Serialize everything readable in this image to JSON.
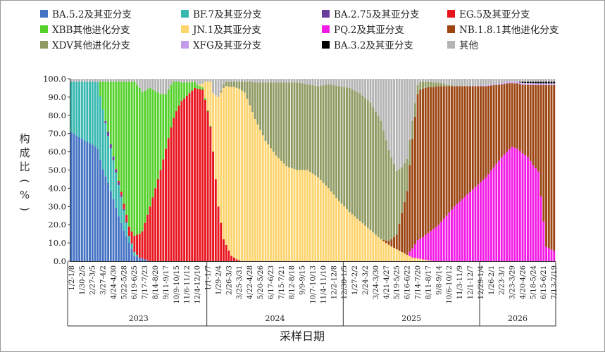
{
  "colors": {
    "BA52": "#4472c4",
    "BF7": "#36b8b0",
    "BA275": "#6a3d9a",
    "EG5": "#e8141e",
    "XBB": "#55d12b",
    "JN1": "#fdd46e",
    "PQ2": "#f21be6",
    "NB181": "#9c4511",
    "XDV": "#8f9b63",
    "XFG": "#c39bea",
    "BA32": "#000000",
    "other": "#b4b4b4"
  },
  "legend": [
    {
      "key": "BA52",
      "label": "BA.5.2及其亚分支"
    },
    {
      "key": "BF7",
      "label": "BF.7及其亚分支"
    },
    {
      "key": "BA275",
      "label": "BA.2.75及其亚分支"
    },
    {
      "key": "EG5",
      "label": "EG.5及其亚分支"
    },
    {
      "key": "XBB",
      "label": "XBB其他进化分支"
    },
    {
      "key": "JN1",
      "label": "JN.1及其亚分支"
    },
    {
      "key": "PQ2",
      "label": "PQ.2及其亚分支"
    },
    {
      "key": "NB181",
      "label": "NB.1.8.1其他进化分支"
    },
    {
      "key": "XDV",
      "label": "XDV其他进化分支"
    },
    {
      "key": "XFG",
      "label": "XFG及其亚分支"
    },
    {
      "key": "BA32",
      "label": "BA.3.2及其亚分支"
    },
    {
      "key": "other",
      "label": "其他"
    }
  ],
  "chart_data": {
    "type": "bar",
    "stacked": true,
    "xlabel": "采样日期",
    "ylabel": "构成比（%）",
    "ylim": [
      0,
      100
    ],
    "yticks": [
      "0.0",
      "10.0",
      "20.0",
      "30.0",
      "40.0",
      "50.0",
      "60.0",
      "70.0",
      "80.0",
      "90.0",
      "100.0"
    ],
    "grid": false,
    "legend_position": "top",
    "stack_order": [
      "BA52",
      "BF7",
      "BA275",
      "EG5",
      "XBB",
      "JN1",
      "PQ2",
      "NB181",
      "XDV",
      "XFG",
      "BA32",
      "other"
    ],
    "x_tick_labels": [
      "1/2-1/8",
      "1/30-2/5",
      "2/27-3/5",
      "3/27-4/2",
      "4/24-4/30",
      "5/22-5/28",
      "6/19-6/25",
      "7/17-7/23",
      "8/14-8/20",
      "9/11-9/17",
      "10/9-10/15",
      "11/6-11/12",
      "12/4-12/10",
      "1/1-1/7",
      "1/29-2/4",
      "2/26-3/3",
      "3/25-3/31",
      "4/22-4/28",
      "5/20-5/26",
      "6/17-6/23",
      "7/15-7/21",
      "8/12-8/18",
      "9/9-9/15",
      "10/7-10/13",
      "11/4-11/10",
      "12/2-12/8",
      "12/30-1/5",
      "1/27-2/2",
      "2/24-3/2",
      "3/24-3/30",
      "4/21-4/27",
      "5/19-5/25",
      "6/16-6/22",
      "7/14-7/20",
      "8/11-8/17",
      "9/8-9/14",
      "10/6-10/12",
      "11/3-11/9",
      "12/1-12/7",
      "12/29-1/4",
      "1/26-2/1",
      "2/23-3/1",
      "3/23-3/29",
      "4/20-4/26",
      "5/18-5/24",
      "6/15-6/21",
      "7/13-7/19"
    ],
    "year_groups": [
      {
        "label": "2023",
        "weeks": 52
      },
      {
        "label": "2024",
        "weeks": 52
      },
      {
        "label": "2025",
        "weeks": 52
      },
      {
        "label": "2026",
        "weeks": 29
      }
    ],
    "week_count": 185,
    "series": [
      {
        "key": "BA52",
        "points": [
          [
            0,
            72
          ],
          [
            8,
            65
          ],
          [
            14,
            55
          ],
          [
            20,
            20
          ],
          [
            24,
            3
          ],
          [
            30,
            0
          ],
          [
            185,
            0
          ]
        ]
      },
      {
        "key": "BF7",
        "points": [
          [
            0,
            28
          ],
          [
            5,
            33
          ],
          [
            12,
            38
          ],
          [
            18,
            22
          ],
          [
            22,
            4
          ],
          [
            26,
            0
          ],
          [
            185,
            0
          ]
        ]
      },
      {
        "key": "BA275",
        "points": [
          [
            0,
            0
          ],
          [
            12,
            0
          ],
          [
            14,
            3
          ],
          [
            18,
            2
          ],
          [
            22,
            0
          ],
          [
            185,
            0
          ]
        ]
      },
      {
        "key": "EG5",
        "points": [
          [
            0,
            0
          ],
          [
            16,
            0
          ],
          [
            18,
            1
          ],
          [
            23,
            7
          ],
          [
            27,
            15
          ],
          [
            34,
            50
          ],
          [
            40,
            85
          ],
          [
            47,
            95
          ],
          [
            50,
            94
          ],
          [
            52,
            90
          ],
          [
            54,
            60
          ],
          [
            56,
            30
          ],
          [
            58,
            12
          ],
          [
            61,
            3
          ],
          [
            63,
            1
          ],
          [
            65,
            0
          ],
          [
            185,
            0
          ]
        ]
      },
      {
        "key": "XBB",
        "points": [
          [
            0,
            0
          ],
          [
            10,
            0
          ],
          [
            14,
            35
          ],
          [
            18,
            70
          ],
          [
            22,
            89
          ],
          [
            26,
            80
          ],
          [
            30,
            65
          ],
          [
            36,
            30
          ],
          [
            42,
            10
          ],
          [
            48,
            2
          ],
          [
            51,
            1
          ],
          [
            55,
            0
          ],
          [
            185,
            0
          ]
        ]
      },
      {
        "key": "JN1",
        "points": [
          [
            0,
            0
          ],
          [
            48,
            0
          ],
          [
            50,
            2
          ],
          [
            54,
            32
          ],
          [
            56,
            60
          ],
          [
            58,
            83
          ],
          [
            60,
            93
          ],
          [
            62,
            95
          ],
          [
            64,
            95
          ],
          [
            66,
            93
          ],
          [
            70,
            78
          ],
          [
            74,
            66
          ],
          [
            78,
            58
          ],
          [
            82,
            52
          ],
          [
            86,
            50
          ],
          [
            90,
            50
          ],
          [
            94,
            46
          ],
          [
            98,
            40
          ],
          [
            102,
            33
          ],
          [
            106,
            27
          ],
          [
            110,
            22
          ],
          [
            114,
            17
          ],
          [
            118,
            12
          ],
          [
            122,
            8
          ],
          [
            126,
            5
          ],
          [
            130,
            2
          ],
          [
            134,
            1
          ],
          [
            138,
            0
          ],
          [
            185,
            0
          ]
        ]
      },
      {
        "key": "PQ2",
        "points": [
          [
            0,
            0
          ],
          [
            128,
            0
          ],
          [
            132,
            10
          ],
          [
            136,
            15
          ],
          [
            140,
            20
          ],
          [
            146,
            30
          ],
          [
            152,
            38
          ],
          [
            158,
            46
          ],
          [
            164,
            57
          ],
          [
            168,
            63
          ],
          [
            170,
            62
          ],
          [
            174,
            58
          ],
          [
            176,
            54
          ],
          [
            178,
            50
          ],
          [
            181,
            8
          ],
          [
            185,
            5
          ]
        ]
      },
      {
        "key": "NB181",
        "points": [
          [
            0,
            0
          ],
          [
            118,
            0
          ],
          [
            121,
            2
          ],
          [
            124,
            8
          ],
          [
            128,
            35
          ],
          [
            130,
            60
          ],
          [
            132,
            80
          ],
          [
            134,
            84
          ],
          [
            136,
            80
          ],
          [
            140,
            76
          ],
          [
            146,
            66
          ],
          [
            152,
            58
          ],
          [
            158,
            50
          ],
          [
            164,
            40
          ],
          [
            168,
            35
          ],
          [
            170,
            36
          ],
          [
            174,
            40
          ],
          [
            176,
            45
          ],
          [
            178,
            48
          ],
          [
            181,
            90
          ],
          [
            185,
            93
          ]
        ]
      },
      {
        "key": "XDV",
        "points": [
          [
            0,
            0
          ],
          [
            56,
            0
          ],
          [
            58,
            2
          ],
          [
            60,
            3
          ],
          [
            62,
            3
          ],
          [
            64,
            4
          ],
          [
            66,
            6
          ],
          [
            70,
            20
          ],
          [
            74,
            32
          ],
          [
            78,
            40
          ],
          [
            82,
            46
          ],
          [
            86,
            48
          ],
          [
            90,
            47
          ],
          [
            94,
            50
          ],
          [
            98,
            57
          ],
          [
            102,
            63
          ],
          [
            106,
            68
          ],
          [
            110,
            70
          ],
          [
            114,
            70
          ],
          [
            118,
            65
          ],
          [
            122,
            45
          ],
          [
            126,
            25
          ],
          [
            130,
            10
          ],
          [
            132,
            5
          ],
          [
            136,
            3
          ],
          [
            140,
            2
          ],
          [
            146,
            0
          ],
          [
            185,
            0
          ]
        ]
      },
      {
        "key": "XFG",
        "points": [
          [
            0,
            0
          ],
          [
            150,
            0
          ],
          [
            160,
            0.5
          ],
          [
            170,
            1
          ],
          [
            185,
            1
          ]
        ]
      },
      {
        "key": "BA32",
        "points": [
          [
            0,
            0
          ],
          [
            170,
            0
          ],
          [
            172,
            0.8
          ],
          [
            178,
            1
          ],
          [
            185,
            1
          ]
        ]
      },
      {
        "key": "other",
        "points": [
          [
            0,
            0
          ],
          [
            185,
            0
          ]
        ]
      }
    ]
  }
}
